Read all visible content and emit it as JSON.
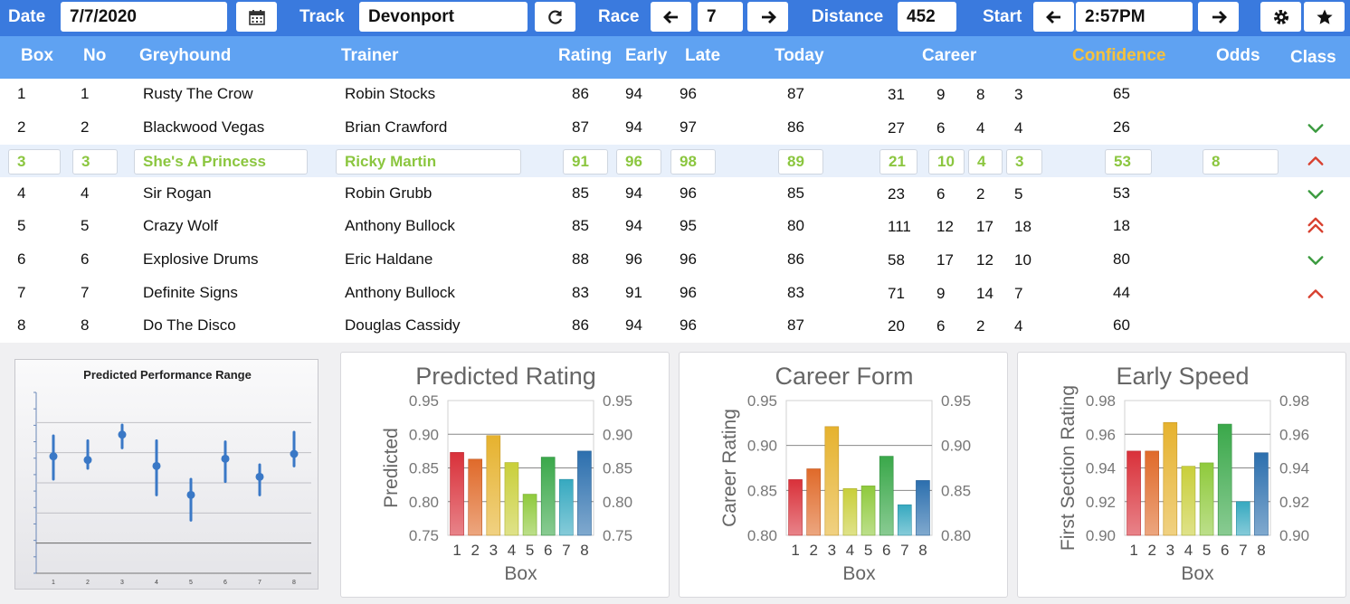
{
  "toolbar": {
    "date_label": "Date",
    "date_value": "7/7/2020",
    "track_label": "Track",
    "track_value": "Devonport",
    "race_label": "Race",
    "race_value": "7",
    "distance_label": "Distance",
    "distance_value": "452",
    "start_label": "Start",
    "start_value": "2:57PM",
    "icons": [
      "calendar-icon",
      "refresh-icon",
      "arrow-left-icon",
      "arrow-right-icon",
      "gear-icon",
      "star-icon"
    ]
  },
  "table": {
    "headers": {
      "box": "Box",
      "no": "No",
      "greyhound": "Greyhound",
      "trainer": "Trainer",
      "rating": "Rating",
      "early": "Early",
      "late": "Late",
      "today": "Today",
      "career": "Career",
      "confidence": "Confidence",
      "odds": "Odds",
      "class": "Class"
    },
    "confidence_color": "#f7c23c",
    "selected_color": "#8bc63f",
    "rows": [
      {
        "box": "1",
        "no": "1",
        "greyhound": "Rusty The Crow",
        "trainer": "Robin Stocks",
        "rating": "86",
        "early": "94",
        "late": "96",
        "today": "87",
        "career": [
          "31",
          "9",
          "8",
          "3"
        ],
        "confidence": "65",
        "odds": "",
        "class_icon": "none"
      },
      {
        "box": "2",
        "no": "2",
        "greyhound": "Blackwood Vegas",
        "trainer": "Brian Crawford",
        "rating": "87",
        "early": "94",
        "late": "97",
        "today": "86",
        "career": [
          "27",
          "6",
          "4",
          "4"
        ],
        "confidence": "26",
        "odds": "",
        "class_icon": "chevron-down-icon"
      },
      {
        "box": "3",
        "no": "3",
        "greyhound": "She's A Princess",
        "trainer": "Ricky Martin",
        "rating": "91",
        "early": "96",
        "late": "98",
        "today": "89",
        "career": [
          "21",
          "10",
          "4",
          "3"
        ],
        "confidence": "53",
        "odds": "8",
        "class_icon": "chevron-up-icon",
        "selected": true
      },
      {
        "box": "4",
        "no": "4",
        "greyhound": "Sir Rogan",
        "trainer": "Robin Grubb",
        "rating": "85",
        "early": "94",
        "late": "96",
        "today": "85",
        "career": [
          "23",
          "6",
          "2",
          "5"
        ],
        "confidence": "53",
        "odds": "",
        "class_icon": "chevron-down-icon"
      },
      {
        "box": "5",
        "no": "5",
        "greyhound": "Crazy Wolf",
        "trainer": "Anthony Bullock",
        "rating": "85",
        "early": "94",
        "late": "95",
        "today": "80",
        "career": [
          "111",
          "12",
          "17",
          "18"
        ],
        "confidence": "18",
        "odds": "",
        "class_icon": "double-chevron-up-icon"
      },
      {
        "box": "6",
        "no": "6",
        "greyhound": "Explosive Drums",
        "trainer": "Eric Haldane",
        "rating": "88",
        "early": "96",
        "late": "96",
        "today": "86",
        "career": [
          "58",
          "17",
          "12",
          "10"
        ],
        "confidence": "80",
        "odds": "",
        "class_icon": "chevron-down-icon"
      },
      {
        "box": "7",
        "no": "7",
        "greyhound": "Definite Signs",
        "trainer": "Anthony Bullock",
        "rating": "83",
        "early": "91",
        "late": "96",
        "today": "83",
        "career": [
          "71",
          "9",
          "14",
          "7"
        ],
        "confidence": "44",
        "odds": "",
        "class_icon": "chevron-up-icon"
      },
      {
        "box": "8",
        "no": "8",
        "greyhound": "Do The Disco",
        "trainer": "Douglas Cassidy",
        "rating": "86",
        "early": "94",
        "late": "96",
        "today": "87",
        "career": [
          "20",
          "6",
          "2",
          "4"
        ],
        "confidence": "60",
        "odds": "",
        "class_icon": "none"
      }
    ]
  },
  "chart_data": [
    {
      "type": "scatter",
      "title": "Predicted Performance Range",
      "x": [
        "1",
        "2",
        "3",
        "4",
        "5",
        "6",
        "7",
        "8"
      ],
      "ranges": [
        [
          0.53,
          0.89
        ],
        [
          0.62,
          0.85
        ],
        [
          0.79,
          0.98
        ],
        [
          0.4,
          0.85
        ],
        [
          0.19,
          0.53
        ],
        [
          0.51,
          0.84
        ],
        [
          0.4,
          0.65
        ],
        [
          0.64,
          0.92
        ]
      ],
      "points": [
        0.72,
        0.69,
        0.9,
        0.64,
        0.4,
        0.7,
        0.55,
        0.74
      ],
      "ylim": [
        -0.25,
        1.25
      ],
      "grid": true,
      "color": "#3a78c6"
    },
    {
      "type": "bar",
      "title": "Predicted Rating",
      "xlabel": "Box",
      "ylabel": "Predicted",
      "categories": [
        "1",
        "2",
        "3",
        "4",
        "5",
        "6",
        "7",
        "8"
      ],
      "values": [
        0.873,
        0.863,
        0.898,
        0.858,
        0.811,
        0.866,
        0.833,
        0.875
      ],
      "ylim": [
        0.75,
        0.95
      ],
      "yticks": [
        "0.75",
        "0.80",
        "0.85",
        "0.90",
        "0.95"
      ],
      "colors": [
        "#d9313a",
        "#e06a2a",
        "#e6b22e",
        "#c9cf3a",
        "#8fca3c",
        "#3aa84a",
        "#36a9c0",
        "#2c6fae"
      ]
    },
    {
      "type": "bar",
      "title": "Career Form",
      "xlabel": "Box",
      "ylabel": "Career Rating",
      "categories": [
        "1",
        "2",
        "3",
        "4",
        "5",
        "6",
        "7",
        "8"
      ],
      "values": [
        0.862,
        0.874,
        0.921,
        0.852,
        0.855,
        0.888,
        0.834,
        0.861
      ],
      "ylim": [
        0.8,
        0.95
      ],
      "yticks": [
        "0.80",
        "0.85",
        "0.90",
        "0.95"
      ],
      "colors": [
        "#d9313a",
        "#e06a2a",
        "#e6b22e",
        "#c9cf3a",
        "#8fca3c",
        "#3aa84a",
        "#36a9c0",
        "#2c6fae"
      ]
    },
    {
      "type": "bar",
      "title": "Early Speed",
      "xlabel": "Box",
      "ylabel": "First Section Rating",
      "categories": [
        "1",
        "2",
        "3",
        "4",
        "5",
        "6",
        "7",
        "8"
      ],
      "values": [
        0.95,
        0.95,
        0.967,
        0.941,
        0.943,
        0.966,
        0.92,
        0.949
      ],
      "ylim": [
        0.9,
        0.98
      ],
      "yticks": [
        "0.90",
        "0.92",
        "0.94",
        "0.96",
        "0.98"
      ],
      "colors": [
        "#d9313a",
        "#e06a2a",
        "#e6b22e",
        "#c9cf3a",
        "#8fca3c",
        "#3aa84a",
        "#36a9c0",
        "#2c6fae"
      ]
    }
  ]
}
